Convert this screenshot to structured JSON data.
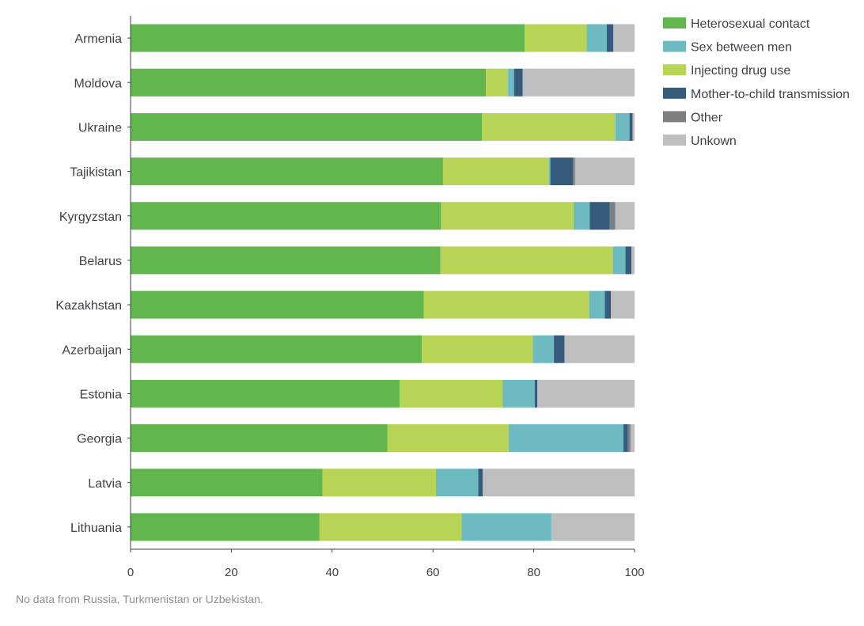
{
  "chart_data": {
    "type": "bar",
    "orientation": "horizontal",
    "stacked": true,
    "title": "",
    "xlabel": "",
    "ylabel": "",
    "xlim": [
      0,
      100
    ],
    "xticks": [
      "0",
      "20",
      "40",
      "60",
      "80",
      "100"
    ],
    "grid": false,
    "legend_position": "top-right",
    "categories": [
      "Armenia",
      "Moldova",
      "Ukraine",
      "Tajikistan",
      "Kyrgyzstan",
      "Belarus",
      "Kazakhstan",
      "Azerbaijan",
      "Estonia",
      "Georgia",
      "Latvia",
      "Lithuania"
    ],
    "series": [
      {
        "name": "Heterosexual contact",
        "color": "#62b64e",
        "values": [
          78.2,
          70.5,
          69.7,
          62.0,
          61.6,
          61.5,
          58.2,
          57.8,
          53.4,
          51.0,
          38.1,
          37.5
        ]
      },
      {
        "name": "Sex between men",
        "color": "#6dbbc1",
        "values": [
          4.0,
          1.2,
          2.8,
          0.3,
          3.2,
          2.5,
          3.1,
          4.2,
          6.4,
          22.8,
          8.4,
          17.8
        ]
      },
      {
        "name": "Injecting drug use",
        "color": "#b8d456",
        "values": [
          12.3,
          4.4,
          26.5,
          21.0,
          26.3,
          34.2,
          32.8,
          22.0,
          20.4,
          24.0,
          22.5,
          28.2
        ]
      },
      {
        "name": "Mother-to-child transmission",
        "color": "#355c7d",
        "values": [
          1.3,
          1.7,
          0.6,
          4.5,
          4.0,
          1.2,
          1.2,
          2.1,
          0.5,
          0.9,
          0.9,
          0.0
        ]
      },
      {
        "name": "Other",
        "color": "#7d8083",
        "values": [
          0.0,
          0.0,
          0.0,
          0.4,
          1.1,
          0.0,
          0.0,
          0.0,
          0.0,
          0.5,
          0.0,
          0.0
        ]
      },
      {
        "name": "Unkown",
        "color": "#bcbec0",
        "values": [
          4.2,
          22.2,
          0.4,
          11.8,
          3.8,
          0.6,
          4.7,
          13.9,
          19.3,
          0.8,
          30.1,
          16.5
        ]
      }
    ],
    "stack_order": [
      0,
      2,
      1,
      3,
      4,
      5
    ]
  },
  "footnote": "No data from Russia, Turkmenistan or Uzbekistan."
}
